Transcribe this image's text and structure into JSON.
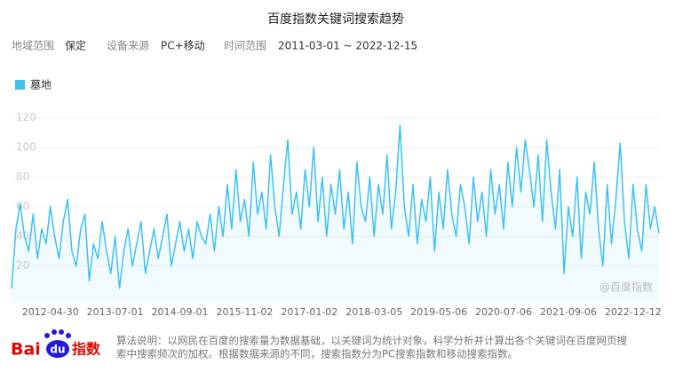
{
  "header": {
    "title": "百度指数关键词搜索趋势",
    "filters": [
      {
        "label": "地域范围",
        "value": "保定"
      },
      {
        "label": "设备来源",
        "value": "PC+移动"
      },
      {
        "label": "时间范围",
        "value": "2011-03-01 ~ 2022-12-15"
      }
    ]
  },
  "chart_data": {
    "type": "line",
    "categories": [
      null,
      null,
      null,
      null,
      null,
      null,
      null,
      null,
      null,
      "2012-04-30",
      null,
      null,
      null,
      null,
      null,
      null,
      null,
      null,
      null,
      null,
      null,
      null,
      null,
      null,
      "2013-07-01",
      null,
      null,
      null,
      null,
      null,
      null,
      null,
      null,
      null,
      null,
      null,
      null,
      null,
      null,
      "2014-09-01",
      null,
      null,
      null,
      null,
      null,
      null,
      null,
      null,
      null,
      null,
      null,
      null,
      null,
      null,
      "2015-11-02",
      null,
      null,
      null,
      null,
      null,
      null,
      null,
      null,
      null,
      null,
      null,
      null,
      null,
      null,
      "2017-01-02",
      null,
      null,
      null,
      null,
      null,
      null,
      null,
      null,
      null,
      null,
      null,
      null,
      null,
      null,
      "2018-03-05",
      null,
      null,
      null,
      null,
      null,
      null,
      null,
      null,
      null,
      null,
      null,
      null,
      null,
      null,
      "2019-05-06",
      null,
      null,
      null,
      null,
      null,
      null,
      null,
      null,
      null,
      null,
      null,
      null,
      null,
      null,
      "2020-07-06",
      null,
      null,
      null,
      null,
      null,
      null,
      null,
      null,
      null,
      null,
      null,
      null,
      null,
      null,
      "2021-09-06",
      null,
      null,
      null,
      null,
      null,
      null,
      null,
      null,
      null,
      null,
      null,
      null,
      null,
      null,
      "2022-12-12",
      null,
      null,
      null,
      null,
      null,
      null
    ],
    "series": [
      {
        "name": "墓地",
        "color": "#3ec1f0",
        "values": [
          5,
          45,
          62,
          40,
          30,
          55,
          25,
          45,
          35,
          60,
          40,
          25,
          50,
          65,
          30,
          20,
          45,
          55,
          10,
          35,
          25,
          50,
          30,
          15,
          40,
          5,
          30,
          45,
          20,
          35,
          50,
          15,
          30,
          45,
          25,
          40,
          55,
          20,
          35,
          50,
          30,
          45,
          25,
          50,
          40,
          35,
          55,
          30,
          60,
          40,
          75,
          45,
          85,
          50,
          65,
          40,
          90,
          55,
          70,
          45,
          95,
          60,
          40,
          75,
          105,
          55,
          70,
          45,
          85,
          60,
          100,
          50,
          80,
          40,
          75,
          55,
          85,
          45,
          70,
          35,
          90,
          60,
          50,
          80,
          40,
          75,
          55,
          95,
          45,
          70,
          115,
          60,
          40,
          75,
          35,
          65,
          50,
          80,
          30,
          70,
          45,
          85,
          55,
          40,
          75,
          60,
          35,
          80,
          50,
          70,
          40,
          85,
          55,
          75,
          45,
          90,
          60,
          100,
          70,
          105,
          85,
          60,
          95,
          50,
          105,
          70,
          45,
          85,
          15,
          60,
          40,
          80,
          25,
          70,
          55,
          90,
          45,
          20,
          75,
          35,
          65,
          103,
          50,
          25,
          75,
          45,
          30,
          75,
          45,
          60,
          42
        ]
      }
    ],
    "ylim": [
      0,
      130
    ],
    "yticks": [
      20,
      40,
      60,
      80,
      100,
      120
    ],
    "grid": true,
    "watermark": "@百度指数"
  },
  "footer": {
    "logo": [
      "Bai",
      "du",
      "指数"
    ],
    "note": [
      "算法说明：以网民在百度的搜索量为数据基础，以关键词为统计对象，科学分析并计算出各个关键词在百度网页搜",
      "索中搜索频次的加权。根据数据来源的不同，搜索指数分为PC搜索指数和移动搜索指数。"
    ]
  }
}
